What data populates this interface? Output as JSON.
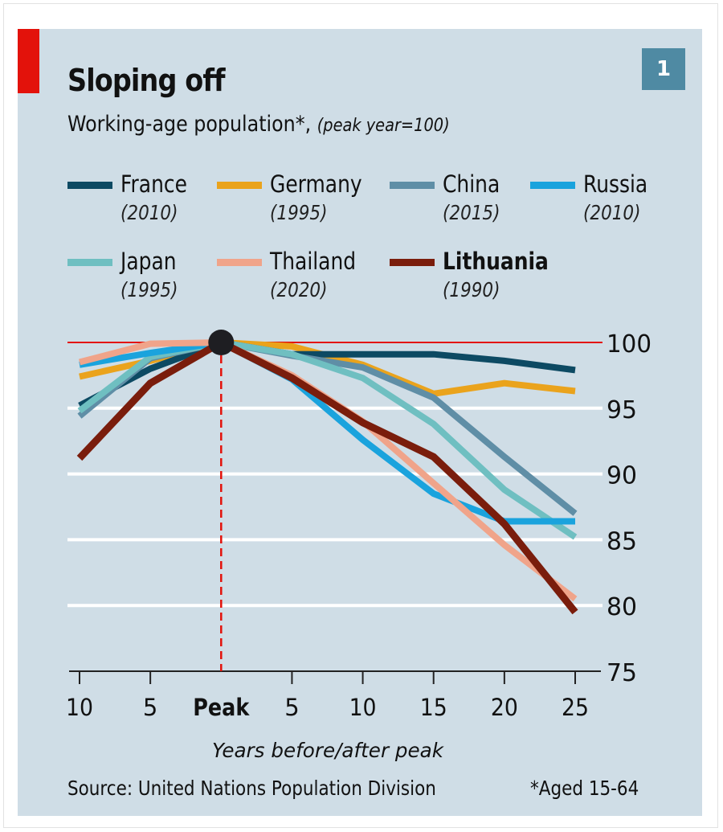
{
  "header": {
    "title": "Sloping off",
    "subtitle_main": "Working-age population*,",
    "subtitle_note": "(peak year=100)",
    "chart_number": "1"
  },
  "legend": [
    {
      "name": "France",
      "year": "(2010)",
      "color": "#0d4a63",
      "bold": false
    },
    {
      "name": "Germany",
      "year": "(1995)",
      "color": "#eaa31c",
      "bold": false
    },
    {
      "name": "China",
      "year": "(2015)",
      "color": "#5f8ea6",
      "bold": false
    },
    {
      "name": "Russia",
      "year": "(2010)",
      "color": "#1aa3dd",
      "bold": false
    },
    {
      "name": "Japan",
      "year": "(1995)",
      "color": "#6fbfc1",
      "bold": false
    },
    {
      "name": "Thailand",
      "year": "(2020)",
      "color": "#f0a48a",
      "bold": false
    },
    {
      "name": "Lithuania",
      "year": "(1990)",
      "color": "#7a1d0c",
      "bold": true
    }
  ],
  "footer": {
    "source": "Source: United Nations Population Division",
    "note": "*Aged 15-64"
  },
  "chart_data": {
    "type": "line",
    "title": "Sloping off",
    "subtitle": "Working-age population*, (peak year=100)",
    "xlabel": "Years before/after peak",
    "ylabel": "",
    "x": [
      -10,
      -5,
      0,
      5,
      10,
      15,
      20,
      25
    ],
    "x_tick_labels": [
      "10",
      "5",
      "Peak",
      "5",
      "10",
      "15",
      "20",
      "25"
    ],
    "y_ticks": [
      75,
      80,
      85,
      90,
      95,
      100
    ],
    "ylim": [
      75,
      100
    ],
    "xlim": [
      -10,
      25
    ],
    "grid": true,
    "reference_line": 100,
    "peak_marker_x": 0,
    "legend_position": "top",
    "series": [
      {
        "name": "France",
        "peak_year": "2010",
        "color": "#0d4a63",
        "values": [
          95.2,
          98.0,
          100,
          99.1,
          99.1,
          99.1,
          98.6,
          97.9
        ]
      },
      {
        "name": "Germany",
        "peak_year": "1995",
        "color": "#eaa31c",
        "values": [
          97.4,
          98.6,
          100,
          99.7,
          98.3,
          96.1,
          96.9,
          96.3
        ]
      },
      {
        "name": "China",
        "peak_year": "2015",
        "color": "#5f8ea6",
        "values": [
          94.4,
          98.8,
          100,
          99.0,
          98.1,
          95.8,
          91.3,
          87.0
        ]
      },
      {
        "name": "Russia",
        "peak_year": "2010",
        "color": "#1aa3dd",
        "values": [
          98.3,
          99.2,
          100,
          97.2,
          92.6,
          88.5,
          86.4,
          86.4
        ]
      },
      {
        "name": "Japan",
        "peak_year": "1995",
        "color": "#6fbfc1",
        "values": [
          94.8,
          98.9,
          100,
          99.1,
          97.3,
          93.8,
          88.8,
          85.2
        ]
      },
      {
        "name": "Thailand",
        "peak_year": "2020",
        "color": "#f0a48a",
        "values": [
          98.5,
          99.9,
          100,
          97.5,
          94.0,
          89.3,
          84.6,
          80.5
        ]
      },
      {
        "name": "Lithuania",
        "peak_year": "1990",
        "color": "#7a1d0c",
        "values": [
          91.2,
          96.9,
          100,
          97.3,
          93.9,
          91.3,
          86.2,
          79.5
        ]
      }
    ]
  }
}
